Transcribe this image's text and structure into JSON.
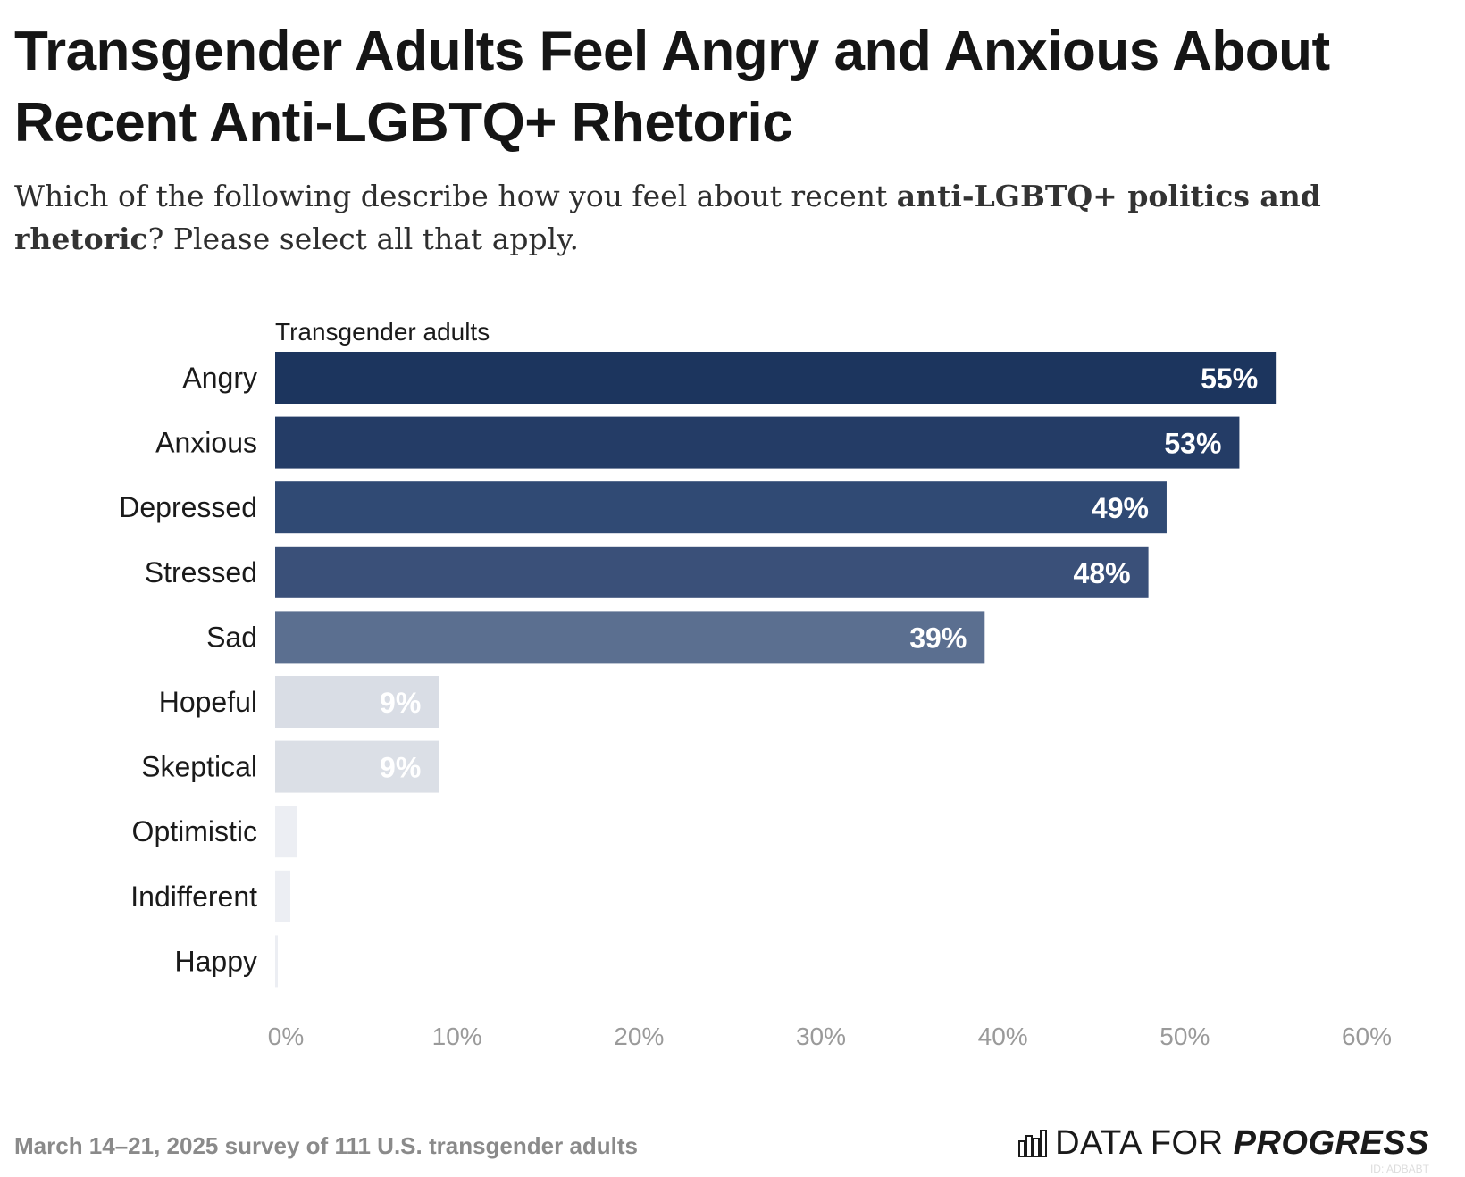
{
  "title": "Transgender Adults Feel Angry and Anxious About Recent Anti-LGBTQ+ Rhetoric",
  "subtitle": {
    "part1": "Which of the following describe how you feel about recent ",
    "bold": "anti-LGBTQ+ politics and rhetoric",
    "part2": "? Please select all that apply."
  },
  "footer": {
    "source": "March 14–21, 2025 survey of 111 U.S. transgender adults",
    "logo_light": "DATA FOR ",
    "logo_bold": "PROGRESS",
    "id": "ID: ADBABT"
  },
  "colors": {
    "bar_scale": [
      "#1c355e",
      "#243c66",
      "#304a74",
      "#3a5079",
      "#5b6f90",
      "#d9dde5",
      "#e3e6ed",
      "#eceef3"
    ],
    "value_label": "#ffffff",
    "tick": "#9a9a9a"
  },
  "chart_data": {
    "type": "bar",
    "orientation": "horizontal",
    "panel_label": "Transgender adults",
    "categories": [
      "Angry",
      "Anxious",
      "Depressed",
      "Stressed",
      "Sad",
      "Hopeful",
      "Skeptical",
      "Optimistic",
      "Indifferent",
      "Happy"
    ],
    "values": [
      55,
      53,
      49,
      48,
      39,
      9,
      9,
      1,
      1,
      0
    ],
    "value_labels": [
      "55%",
      "53%",
      "49%",
      "48%",
      "39%",
      "9%",
      "9%",
      "",
      "",
      ""
    ],
    "bar_colors": [
      "#1c355e",
      "#243c66",
      "#304a74",
      "#3a5079",
      "#5b6f90",
      "#d9dde5",
      "#dbdfe6",
      "#eceef3",
      "#eceef3",
      "#eceef3"
    ],
    "xlim": [
      0,
      60
    ],
    "x_ticks": [
      "0%",
      "10%",
      "20%",
      "30%",
      "40%",
      "50%",
      "60%"
    ],
    "grid": false
  }
}
